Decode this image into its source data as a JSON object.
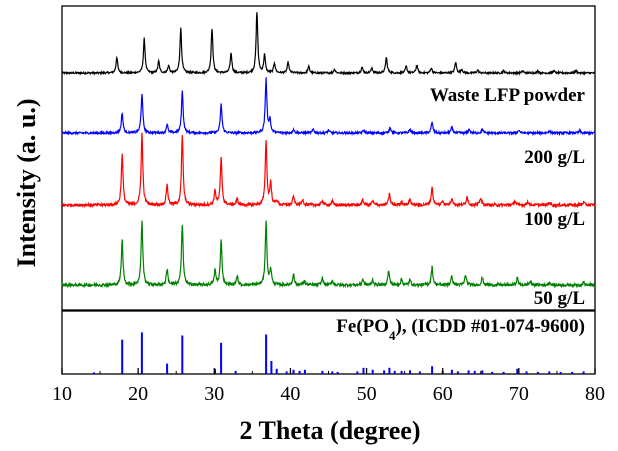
{
  "chart_data": {
    "type": "line",
    "title": "",
    "xlabel": "2 Theta (degree)",
    "ylabel": "Intensity (a. u.)",
    "xlim": [
      10,
      80
    ],
    "x_ticks": [
      "10",
      "20",
      "30",
      "40",
      "50",
      "60",
      "70",
      "80"
    ],
    "grid": false,
    "series": [
      {
        "name": "Waste LFP powder",
        "color": "#000000",
        "noise": 0.012,
        "peaks": [
          [
            17.2,
            0.22
          ],
          [
            20.8,
            0.48
          ],
          [
            22.7,
            0.16
          ],
          [
            24.0,
            0.1
          ],
          [
            25.6,
            0.62
          ],
          [
            29.7,
            0.62
          ],
          [
            32.2,
            0.28
          ],
          [
            35.6,
            0.85
          ],
          [
            36.6,
            0.25
          ],
          [
            37.9,
            0.14
          ],
          [
            39.7,
            0.15
          ],
          [
            42.4,
            0.09
          ],
          [
            45.8,
            0.05
          ],
          [
            49.4,
            0.08
          ],
          [
            50.7,
            0.07
          ],
          [
            52.6,
            0.22
          ],
          [
            55.2,
            0.09
          ],
          [
            56.6,
            0.11
          ],
          [
            58.5,
            0.07
          ],
          [
            61.7,
            0.15
          ],
          [
            62.5,
            0.05
          ],
          [
            64.6,
            0.04
          ],
          [
            68.0,
            0.03
          ],
          [
            70.5,
            0.03
          ],
          [
            72.5,
            0.03
          ],
          [
            74.6,
            0.03
          ],
          [
            77.5,
            0.03
          ]
        ]
      },
      {
        "name": "200 g/L",
        "color": "#0000ff",
        "noise": 0.015,
        "peaks": [
          [
            17.9,
            0.28
          ],
          [
            20.5,
            0.55
          ],
          [
            23.8,
            0.12
          ],
          [
            25.8,
            0.58
          ],
          [
            30.9,
            0.4
          ],
          [
            36.8,
            0.75
          ],
          [
            37.3,
            0.18
          ],
          [
            40.4,
            0.05
          ],
          [
            43.0,
            0.05
          ],
          [
            45.0,
            0.04
          ],
          [
            49.6,
            0.04
          ],
          [
            53.1,
            0.08
          ],
          [
            55.7,
            0.05
          ],
          [
            58.6,
            0.15
          ],
          [
            61.2,
            0.08
          ],
          [
            63.5,
            0.05
          ],
          [
            65.2,
            0.05
          ],
          [
            70.0,
            0.04
          ],
          [
            74.0,
            0.03
          ],
          [
            78.0,
            0.03
          ]
        ]
      },
      {
        "name": "100 g/L",
        "color": "#ff0000",
        "noise": 0.02,
        "peaks": [
          [
            17.9,
            0.72
          ],
          [
            20.5,
            1.0
          ],
          [
            23.8,
            0.28
          ],
          [
            25.8,
            0.95
          ],
          [
            30.1,
            0.2
          ],
          [
            30.9,
            0.65
          ],
          [
            33.0,
            0.08
          ],
          [
            36.8,
            0.9
          ],
          [
            37.4,
            0.3
          ],
          [
            38.2,
            0.06
          ],
          [
            40.4,
            0.12
          ],
          [
            41.6,
            0.08
          ],
          [
            44.2,
            0.06
          ],
          [
            45.5,
            0.05
          ],
          [
            49.5,
            0.07
          ],
          [
            50.8,
            0.06
          ],
          [
            53.0,
            0.15
          ],
          [
            54.6,
            0.05
          ],
          [
            55.7,
            0.08
          ],
          [
            58.6,
            0.25
          ],
          [
            60.0,
            0.06
          ],
          [
            61.2,
            0.1
          ],
          [
            63.2,
            0.12
          ],
          [
            65.0,
            0.1
          ],
          [
            69.5,
            0.06
          ],
          [
            71.2,
            0.05
          ],
          [
            74.0,
            0.04
          ],
          [
            78.5,
            0.04
          ]
        ]
      },
      {
        "name": "50 g/L",
        "color": "#008000",
        "noise": 0.02,
        "peaks": [
          [
            17.9,
            0.62
          ],
          [
            20.5,
            0.9
          ],
          [
            23.8,
            0.22
          ],
          [
            25.8,
            0.85
          ],
          [
            30.1,
            0.2
          ],
          [
            30.9,
            0.62
          ],
          [
            33.0,
            0.12
          ],
          [
            36.8,
            0.88
          ],
          [
            37.4,
            0.22
          ],
          [
            40.4,
            0.15
          ],
          [
            41.8,
            0.06
          ],
          [
            44.2,
            0.1
          ],
          [
            45.5,
            0.06
          ],
          [
            49.5,
            0.08
          ],
          [
            50.8,
            0.07
          ],
          [
            52.9,
            0.2
          ],
          [
            54.6,
            0.08
          ],
          [
            55.7,
            0.07
          ],
          [
            58.6,
            0.25
          ],
          [
            61.2,
            0.12
          ],
          [
            63.0,
            0.14
          ],
          [
            65.2,
            0.1
          ],
          [
            69.8,
            0.1
          ],
          [
            71.5,
            0.05
          ],
          [
            74.0,
            0.04
          ],
          [
            78.5,
            0.04
          ]
        ]
      }
    ],
    "reference": {
      "name_prefix": "Fe(PO",
      "name_subscript": "4",
      "name_suffix": "), (ICDD #01-074-9600)",
      "color": "#0000ff",
      "lines": [
        [
          14.2,
          0.03
        ],
        [
          17.9,
          0.66
        ],
        [
          20.5,
          0.8
        ],
        [
          23.8,
          0.2
        ],
        [
          25.8,
          0.74
        ],
        [
          30.1,
          0.1
        ],
        [
          30.9,
          0.6
        ],
        [
          32.8,
          0.06
        ],
        [
          36.8,
          0.76
        ],
        [
          37.5,
          0.25
        ],
        [
          38.2,
          0.1
        ],
        [
          39.5,
          0.05
        ],
        [
          40.4,
          0.08
        ],
        [
          41.2,
          0.06
        ],
        [
          41.9,
          0.08
        ],
        [
          44.2,
          0.06
        ],
        [
          45.5,
          0.05
        ],
        [
          46.2,
          0.04
        ],
        [
          48.8,
          0.05
        ],
        [
          49.6,
          0.12
        ],
        [
          50.8,
          0.08
        ],
        [
          52.3,
          0.07
        ],
        [
          53.0,
          0.12
        ],
        [
          53.7,
          0.06
        ],
        [
          54.6,
          0.06
        ],
        [
          55.7,
          0.07
        ],
        [
          57.0,
          0.05
        ],
        [
          58.6,
          0.15
        ],
        [
          60.0,
          0.06
        ],
        [
          61.2,
          0.08
        ],
        [
          62.0,
          0.05
        ],
        [
          63.4,
          0.07
        ],
        [
          64.2,
          0.06
        ],
        [
          65.2,
          0.07
        ],
        [
          66.5,
          0.04
        ],
        [
          68.0,
          0.04
        ],
        [
          69.8,
          0.1
        ],
        [
          71.0,
          0.05
        ],
        [
          72.5,
          0.04
        ],
        [
          74.0,
          0.05
        ],
        [
          75.5,
          0.04
        ],
        [
          77.0,
          0.04
        ],
        [
          78.5,
          0.05
        ]
      ]
    }
  }
}
